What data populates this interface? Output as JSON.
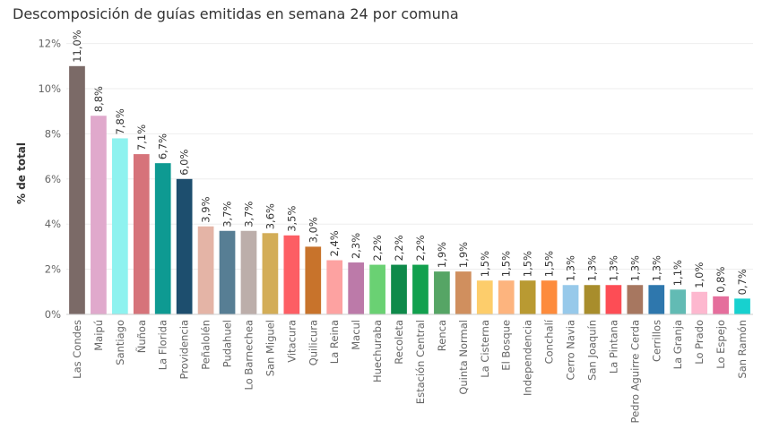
{
  "title": "Descomposición de guías emitidas en semana 24 por comuna",
  "chart_data": {
    "type": "bar",
    "ylabel": "% de total",
    "ylim": [
      0,
      12.5
    ],
    "yticks": [
      0,
      2,
      4,
      6,
      8,
      10,
      12
    ],
    "ytick_labels": [
      "0%",
      "2%",
      "4%",
      "6%",
      "8%",
      "10%",
      "12%"
    ],
    "grid": true,
    "categories": [
      "Las Condes",
      "Maipú",
      "Santiago",
      "Ñuñoa",
      "La Florida",
      "Providencia",
      "Peñalolén",
      "Pudahuel",
      "Lo Barnechea",
      "San Miguel",
      "Vitacura",
      "Quilicura",
      "La Reina",
      "Macul",
      "Huechuraba",
      "Recoleta",
      "Estación Central",
      "Renca",
      "Quinta Normal",
      "La Cisterna",
      "El Bosque",
      "Independencia",
      "Conchalí",
      "Cerro Navia",
      "San Joaquín",
      "La Pintana",
      "Pedro Aguirre Cerda",
      "Cerrillos",
      "La Granja",
      "Lo Prado",
      "Lo Espejo",
      "San Ramón"
    ],
    "values": [
      11.0,
      8.8,
      7.8,
      7.1,
      6.7,
      6.0,
      3.9,
      3.7,
      3.7,
      3.6,
      3.5,
      3.0,
      2.4,
      2.3,
      2.2,
      2.2,
      2.2,
      1.9,
      1.9,
      1.5,
      1.5,
      1.5,
      1.5,
      1.3,
      1.3,
      1.3,
      1.3,
      1.3,
      1.1,
      1.0,
      0.8,
      0.7
    ],
    "labels": [
      "11,0%",
      "8,8%",
      "7,8%",
      "7,1%",
      "6,7%",
      "6,0%",
      "3,9%",
      "3,7%",
      "3,7%",
      "3,6%",
      "3,5%",
      "3,0%",
      "2,4%",
      "2,3%",
      "2,2%",
      "2,2%",
      "2,2%",
      "1,9%",
      "1,9%",
      "1,5%",
      "1,5%",
      "1,5%",
      "1,5%",
      "1,3%",
      "1,3%",
      "1,3%",
      "1,3%",
      "1,3%",
      "1,1%",
      "1,0%",
      "0,8%",
      "0,7%"
    ],
    "colors": [
      "#7b6a67",
      "#e0a9cc",
      "#8ef2ef",
      "#d6737a",
      "#0e9a92",
      "#1d4e6e",
      "#e4b4a6",
      "#577e94",
      "#bcaeaa",
      "#d3ad57",
      "#fd5e64",
      "#c8732b",
      "#fda2a1",
      "#bc7aa9",
      "#6ad173",
      "#0e8a4a",
      "#12a04e",
      "#56a565",
      "#d08f5e",
      "#fdcd6b",
      "#fdb47e",
      "#b99a32",
      "#fd8b3c",
      "#97c9ea",
      "#a88d2c",
      "#fd4d55",
      "#a77760",
      "#2e77ad",
      "#62bbb4",
      "#fdb8cf",
      "#e56e9c",
      "#17d1cf"
    ]
  }
}
